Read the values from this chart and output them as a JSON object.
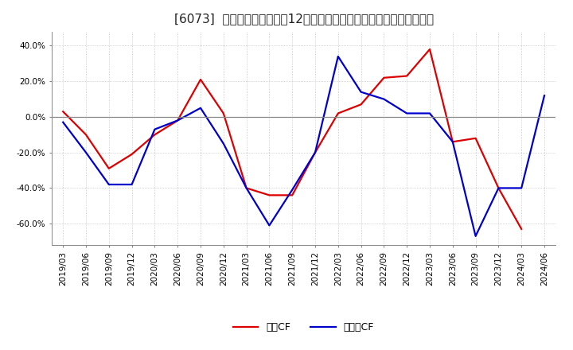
{
  "title": "[6073]  キャッシュフローの12か月移動合計の対前年同期増減率の推移",
  "xlabel_dates": [
    "2019/03",
    "2019/06",
    "2019/09",
    "2019/12",
    "2020/03",
    "2020/06",
    "2020/09",
    "2020/12",
    "2021/03",
    "2021/06",
    "2021/09",
    "2021/12",
    "2022/03",
    "2022/06",
    "2022/09",
    "2022/12",
    "2023/03",
    "2023/06",
    "2023/09",
    "2023/12",
    "2024/03",
    "2024/06"
  ],
  "operating_cf": [
    0.03,
    -0.1,
    -0.29,
    -0.21,
    -0.1,
    -0.02,
    0.21,
    0.02,
    -0.4,
    -0.44,
    -0.44,
    -0.2,
    0.02,
    0.07,
    0.22,
    0.23,
    0.38,
    -0.14,
    -0.12,
    -0.4,
    -0.63,
    null
  ],
  "free_cf": [
    -0.03,
    -0.2,
    -0.38,
    -0.38,
    -0.07,
    -0.02,
    0.05,
    -0.15,
    -0.4,
    -0.61,
    -0.41,
    -0.2,
    0.34,
    0.14,
    0.1,
    0.02,
    0.02,
    -0.14,
    -0.67,
    -0.4,
    -0.4,
    0.12
  ],
  "ylim": [
    -0.72,
    0.48
  ],
  "yticks": [
    -0.6,
    -0.4,
    -0.2,
    0.0,
    0.2,
    0.4
  ],
  "line_color_operating": "#dd0000",
  "line_color_free": "#0000cc",
  "bg_color": "#ffffff",
  "plot_bg_color": "#ffffff",
  "grid_color": "#aaaaaa",
  "zero_line_color": "#888888",
  "legend_operating": "営業CF",
  "legend_free": "フリーCF",
  "title_fontsize": 11,
  "axis_fontsize": 7.5,
  "legend_fontsize": 9,
  "linewidth": 1.6
}
